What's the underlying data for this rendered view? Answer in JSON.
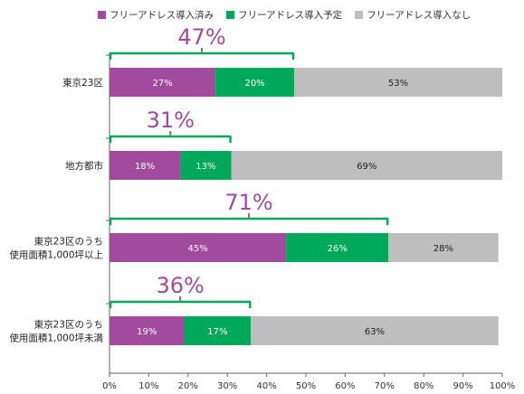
{
  "chart_data": {
    "type": "bar",
    "stacked": true,
    "orientation": "horizontal",
    "categories": [
      "東京23区",
      "地方都市",
      "東京23区のうち\n使用面積1,000坪以上",
      "東京23区のうち\n使用面積1,000坪未満"
    ],
    "series": [
      {
        "name": "フリーアドレス導入済み",
        "color": "#a24a9e",
        "values": [
          27,
          18,
          45,
          19
        ],
        "labels": [
          "27%",
          "18%",
          "45%",
          "19%"
        ]
      },
      {
        "name": "フリーアドレス導入予定",
        "color": "#00a859",
        "values": [
          20,
          13,
          26,
          17
        ],
        "labels": [
          "20%",
          "13%",
          "26%",
          "17%"
        ]
      },
      {
        "name": "フリーアドレス導入なし",
        "color": "#bebebe",
        "values": [
          53,
          69,
          28,
          63
        ],
        "labels": [
          "53%",
          "69%",
          "28%",
          "63%"
        ]
      }
    ],
    "annotations": [
      {
        "category": "東京23区",
        "value": 47,
        "label": "47%"
      },
      {
        "category": "地方都市",
        "value": 31,
        "label": "31%"
      },
      {
        "category": "東京23区のうち\n使用面積1,000坪以上",
        "value": 71,
        "label": "71%"
      },
      {
        "category": "東京23区のうち\n使用面積1,000坪未満",
        "value": 36,
        "label": "36%"
      }
    ],
    "annotation_color": "#a24a9e",
    "bracket_color": "#00a859",
    "xlim": [
      0,
      100
    ],
    "xticks": [
      0,
      10,
      20,
      30,
      40,
      50,
      60,
      70,
      80,
      90,
      100
    ],
    "xtick_labels": [
      "0%",
      "10%",
      "20%",
      "30%",
      "40%",
      "50%",
      "60%",
      "70%",
      "80%",
      "90%",
      "100%"
    ],
    "grid": false,
    "legend_position": "top"
  }
}
